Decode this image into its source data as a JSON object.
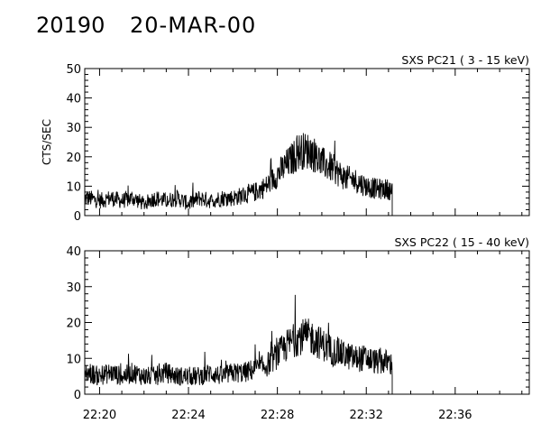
{
  "header": {
    "observation_id": "20190",
    "date": "20-MAR-00"
  },
  "chart_data": [
    {
      "type": "line",
      "title": "SXS PC21  (  3 - 15 keV)",
      "ylabel": "CTS/SEC",
      "xlabel": "",
      "xlim": [
        "22:19:20",
        "22:39:20"
      ],
      "ylim": [
        0,
        50
      ],
      "yticks": [
        0,
        10,
        20,
        30,
        40,
        50
      ],
      "xticks": [
        "22:20",
        "22:24",
        "22:28",
        "22:32",
        "22:36"
      ],
      "grid": false,
      "series": [
        {
          "x": [
            "22:19:30",
            "22:20:00",
            "22:20:30",
            "22:21:00",
            "22:21:30",
            "22:22:00",
            "22:22:30",
            "22:23:00",
            "22:23:30",
            "22:24:00",
            "22:24:30",
            "22:25:00",
            "22:25:30",
            "22:26:00",
            "22:26:30",
            "22:27:00",
            "22:27:30",
            "22:28:00",
            "22:28:30",
            "22:29:00",
            "22:29:30",
            "22:30:00",
            "22:30:30",
            "22:31:00",
            "22:31:30",
            "22:32:00",
            "22:32:30",
            "22:33:00",
            "22:33:10"
          ],
          "values": [
            6,
            5,
            6,
            5,
            6,
            4,
            6,
            5,
            6,
            4,
            6,
            5,
            6,
            6,
            7,
            8,
            10,
            14,
            18,
            22,
            22,
            18,
            16,
            13,
            12,
            10,
            9,
            9,
            8
          ]
        }
      ]
    },
    {
      "type": "line",
      "title": "SXS PC22  ( 15 - 40 keV)",
      "ylabel": "",
      "xlabel": "",
      "xlim": [
        "22:19:20",
        "22:39:20"
      ],
      "ylim": [
        0,
        40
      ],
      "yticks": [
        0,
        10,
        20,
        30,
        40
      ],
      "xticks": [
        "22:20",
        "22:24",
        "22:28",
        "22:32",
        "22:36"
      ],
      "grid": false,
      "series": [
        {
          "x": [
            "22:19:30",
            "22:20:00",
            "22:20:30",
            "22:21:00",
            "22:21:30",
            "22:22:00",
            "22:22:30",
            "22:23:00",
            "22:23:30",
            "22:24:00",
            "22:24:30",
            "22:25:00",
            "22:25:30",
            "22:26:00",
            "22:26:30",
            "22:27:00",
            "22:27:30",
            "22:28:00",
            "22:28:30",
            "22:29:00",
            "22:29:30",
            "22:30:00",
            "22:30:30",
            "22:31:00",
            "22:31:30",
            "22:32:00",
            "22:32:30",
            "22:33:00",
            "22:33:10"
          ],
          "values": [
            6,
            5,
            6,
            5,
            6,
            5,
            5,
            6,
            5,
            5,
            5,
            6,
            5,
            6,
            6,
            7,
            8,
            11,
            14,
            16,
            16,
            14,
            12,
            11,
            10,
            10,
            9,
            9,
            8
          ]
        }
      ]
    }
  ]
}
